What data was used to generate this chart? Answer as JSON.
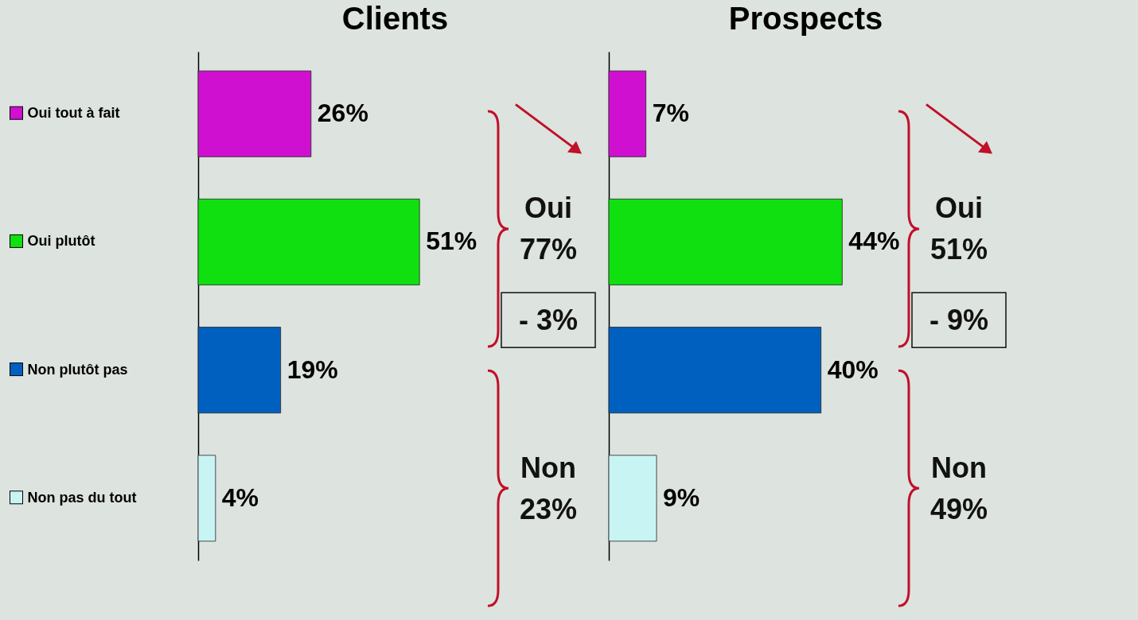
{
  "chart_data": [
    {
      "type": "bar",
      "orientation": "horizontal",
      "title": "Clients",
      "categories": [
        "Oui tout à fait",
        "Oui plutôt",
        "Non plutôt pas",
        "Non pas du tout"
      ],
      "tick_labels": "y",
      "series": [
        {
          "colors": [
            "#d010d0",
            "#10e010",
            "#0060c0",
            "#c8f4f4"
          ],
          "values": [
            26,
            51,
            19,
            4
          ],
          "value_labels": [
            "26%",
            "51%",
            "19%",
            "4%"
          ]
        }
      ],
      "annotations": [
        "Oui\n77%",
        "- 3%",
        "Non\n23%"
      ]
    },
    {
      "type": "bar",
      "orientation": "horizontal",
      "title": "Prospects",
      "categories": [
        null,
        null,
        null,
        null
      ],
      "tick_labels": false,
      "series": [
        {
          "colors": [
            "#d010d0",
            "#10e010",
            "#0060c0",
            "#c8f4f4"
          ],
          "values": [
            7,
            44,
            40,
            9
          ],
          "value_labels": [
            "7%",
            "44%",
            "40%",
            "9%"
          ]
        }
      ],
      "annotations": [
        "Oui\n51%",
        "- 9%",
        "Non\n49%"
      ]
    }
  ]
}
